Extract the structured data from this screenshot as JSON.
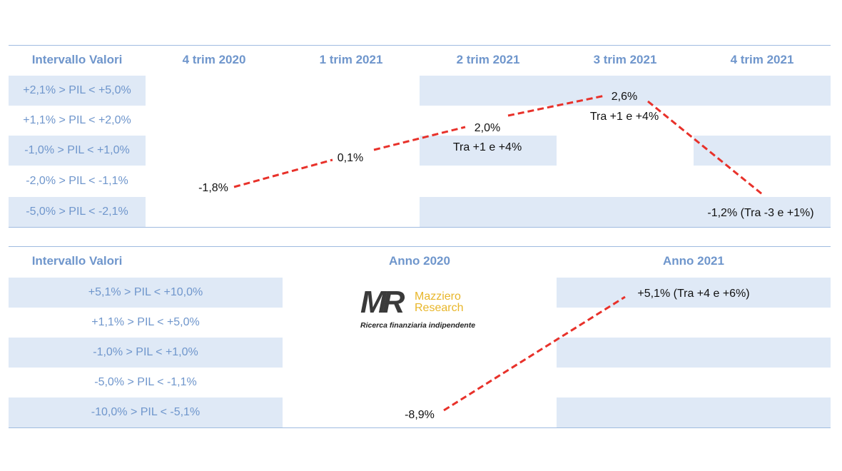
{
  "chart_data": [
    {
      "type": "line",
      "header_label": "Intervallo Valori",
      "categories": [
        "4 trim 2020",
        "1 trim 2021",
        "2 trim 2021",
        "3 trim 2021",
        "4 trim 2021"
      ],
      "ranges": [
        "+2,1% > PIL < +5,0%",
        "+1,1% > PIL < +2,0%",
        "-1,0% > PIL < +1,0%",
        "-2,0% > PIL < -1,1%",
        "-5,0% > PIL < -2,1%"
      ],
      "series": [
        {
          "values": [
            -1.8,
            0.1,
            2.0,
            2.6,
            -1.2
          ],
          "labels": [
            "-1,8%",
            "0,1%",
            "2,0%",
            "2,6%",
            "-1,2% (Tra -3 e +1%)"
          ],
          "range_notes": [
            "",
            "",
            "Tra +1 e +4%",
            "Tra +1 e +4%",
            ""
          ]
        }
      ],
      "line_color": "#e8312a",
      "band_color": "#dfe9f6",
      "header_color": "#6f96cc"
    },
    {
      "type": "line",
      "header_label": "Intervallo Valori",
      "categories": [
        "Anno 2020",
        "Anno 2021"
      ],
      "ranges": [
        "+5,1% > PIL < +10,0%",
        "+1,1% > PIL < +5,0%",
        "-1,0% > PIL < +1,0%",
        "-5,0% > PIL < -1,1%",
        "-10,0% > PIL < -5,1%"
      ],
      "series": [
        {
          "values": [
            -8.9,
            5.1
          ],
          "labels": [
            "-8,9%",
            "+5,1% (Tra +4 e +6%)"
          ]
        }
      ],
      "line_color": "#e8312a"
    }
  ],
  "logo": {
    "mark": "MR",
    "name_line1": "Mazziero",
    "name_line2": "Research",
    "tagline": "Ricerca finanziaria indipendente"
  }
}
